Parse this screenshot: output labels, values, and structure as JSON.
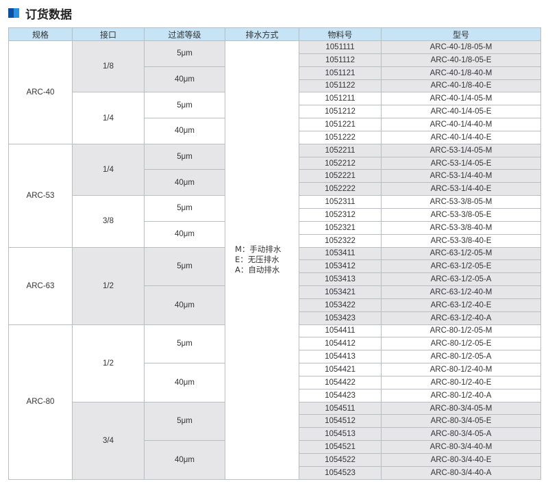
{
  "title": "订货数据",
  "colors": {
    "header_bg": "#c6e4f6",
    "shade": "#e6e6e9",
    "icon_dark": "#0b4ea2",
    "icon_light": "#2a8fdc"
  },
  "columns": [
    "规格",
    "接口",
    "过滤等级",
    "排水方式",
    "物料号",
    "型号"
  ],
  "drain_lines": [
    "M：手动排水",
    "E：无压排水",
    "A：自动排水"
  ],
  "groups": [
    {
      "spec": "ARC-40",
      "ports": [
        {
          "port": "1/8",
          "shaded": true,
          "grades": [
            {
              "grade": "5μm",
              "items": [
                [
                  "1051111",
                  "ARC-40-1/8-05-M"
                ],
                [
                  "1051112",
                  "ARC-40-1/8-05-E"
                ]
              ]
            },
            {
              "grade": "40μm",
              "items": [
                [
                  "1051121",
                  "ARC-40-1/8-40-M"
                ],
                [
                  "1051122",
                  "ARC-40-1/8-40-E"
                ]
              ]
            }
          ]
        },
        {
          "port": "1/4",
          "shaded": false,
          "grades": [
            {
              "grade": "5μm",
              "items": [
                [
                  "1051211",
                  "ARC-40-1/4-05-M"
                ],
                [
                  "1051212",
                  "ARC-40-1/4-05-E"
                ]
              ]
            },
            {
              "grade": "40μm",
              "items": [
                [
                  "1051221",
                  "ARC-40-1/4-40-M"
                ],
                [
                  "1051222",
                  "ARC-40-1/4-40-E"
                ]
              ]
            }
          ]
        }
      ]
    },
    {
      "spec": "ARC-53",
      "ports": [
        {
          "port": "1/4",
          "shaded": true,
          "grades": [
            {
              "grade": "5μm",
              "items": [
                [
                  "1052211",
                  "ARC-53-1/4-05-M"
                ],
                [
                  "1052212",
                  "ARC-53-1/4-05-E"
                ]
              ]
            },
            {
              "grade": "40μm",
              "items": [
                [
                  "1052221",
                  "ARC-53-1/4-40-M"
                ],
                [
                  "1052222",
                  "ARC-53-1/4-40-E"
                ]
              ]
            }
          ]
        },
        {
          "port": "3/8",
          "shaded": false,
          "grades": [
            {
              "grade": "5μm",
              "items": [
                [
                  "1052311",
                  "ARC-53-3/8-05-M"
                ],
                [
                  "1052312",
                  "ARC-53-3/8-05-E"
                ]
              ]
            },
            {
              "grade": "40μm",
              "items": [
                [
                  "1052321",
                  "ARC-53-3/8-40-M"
                ],
                [
                  "1052322",
                  "ARC-53-3/8-40-E"
                ]
              ]
            }
          ]
        }
      ]
    },
    {
      "spec": "ARC-63",
      "ports": [
        {
          "port": "1/2",
          "shaded": true,
          "grades": [
            {
              "grade": "5μm",
              "items": [
                [
                  "1053411",
                  "ARC-63-1/2-05-M"
                ],
                [
                  "1053412",
                  "ARC-63-1/2-05-E"
                ],
                [
                  "1053413",
                  "ARC-63-1/2-05-A"
                ]
              ]
            },
            {
              "grade": "40μm",
              "items": [
                [
                  "1053421",
                  "ARC-63-1/2-40-M"
                ],
                [
                  "1053422",
                  "ARC-63-1/2-40-E"
                ],
                [
                  "1053423",
                  "ARC-63-1/2-40-A"
                ]
              ]
            }
          ]
        }
      ]
    },
    {
      "spec": "ARC-80",
      "ports": [
        {
          "port": "1/2",
          "shaded": false,
          "grades": [
            {
              "grade": "5μm",
              "items": [
                [
                  "1054411",
                  "ARC-80-1/2-05-M"
                ],
                [
                  "1054412",
                  "ARC-80-1/2-05-E"
                ],
                [
                  "1054413",
                  "ARC-80-1/2-05-A"
                ]
              ]
            },
            {
              "grade": "40μm",
              "items": [
                [
                  "1054421",
                  "ARC-80-1/2-40-M"
                ],
                [
                  "1054422",
                  "ARC-80-1/2-40-E"
                ],
                [
                  "1054423",
                  "ARC-80-1/2-40-A"
                ]
              ]
            }
          ]
        },
        {
          "port": "3/4",
          "shaded": true,
          "grades": [
            {
              "grade": "5μm",
              "items": [
                [
                  "1054511",
                  "ARC-80-3/4-05-M"
                ],
                [
                  "1054512",
                  "ARC-80-3/4-05-E"
                ],
                [
                  "1054513",
                  "ARC-80-3/4-05-A"
                ]
              ]
            },
            {
              "grade": "40μm",
              "items": [
                [
                  "1054521",
                  "ARC-80-3/4-40-M"
                ],
                [
                  "1054522",
                  "ARC-80-3/4-40-E"
                ],
                [
                  "1054523",
                  "ARC-80-3/4-40-A"
                ]
              ]
            }
          ]
        }
      ]
    }
  ]
}
